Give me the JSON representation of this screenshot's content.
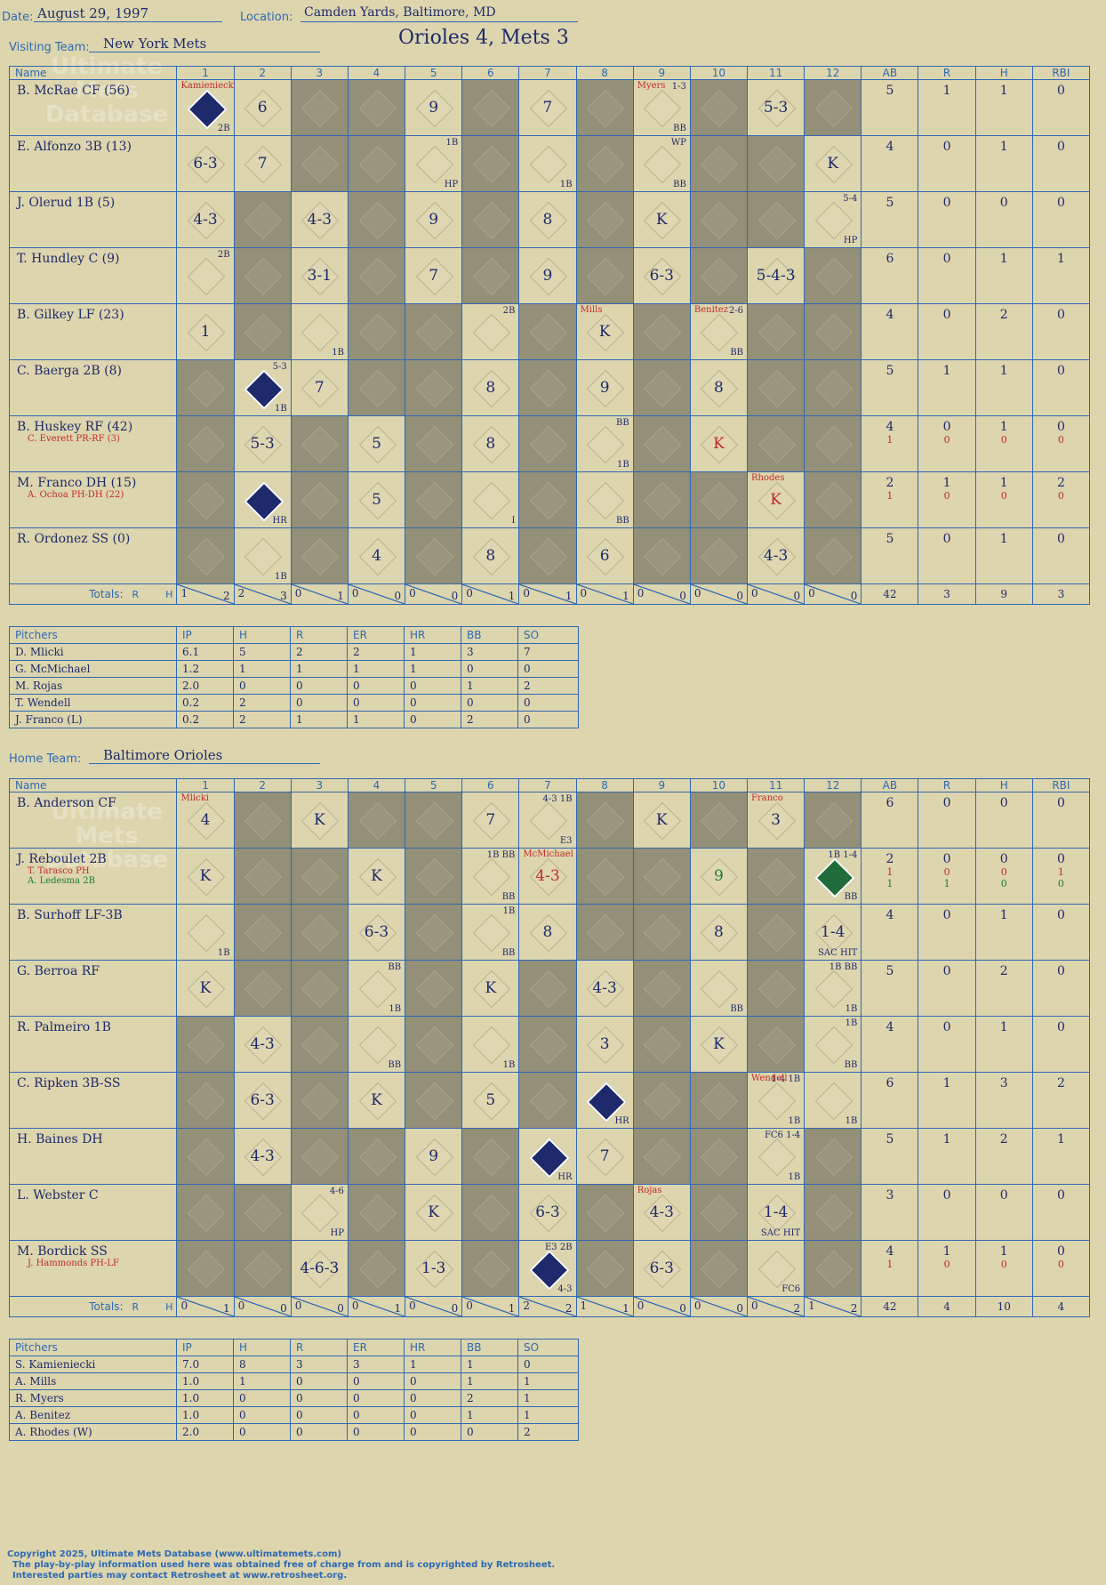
{
  "header": {
    "date_label": "Date:",
    "date": "August 29, 1997",
    "location_label": "Location:",
    "location": "Camden Yards, Baltimore, MD",
    "visiting_label": "Visiting Team:",
    "visiting": "New York Mets",
    "home_label": "Home Team:",
    "home": "Baltimore Orioles",
    "title": "Orioles 4, Mets 3"
  },
  "watermark": [
    "Ultimate",
    "Mets",
    "Database"
  ],
  "columns": {
    "name": "Name",
    "innings": [
      "1",
      "2",
      "3",
      "4",
      "5",
      "6",
      "7",
      "8",
      "9",
      "10",
      "11",
      "12"
    ],
    "stats": [
      "AB",
      "R",
      "H",
      "RBI"
    ]
  },
  "totals_label": "Totals:",
  "rh_label": {
    "r": "R",
    "h": "H"
  },
  "visitors": {
    "rows": [
      {
        "name": "B. McRae CF (56)",
        "subs": [],
        "stats": [
          "5",
          "1",
          "1",
          "0"
        ]
      },
      {
        "name": "E. Alfonzo 3B (13)",
        "subs": [],
        "stats": [
          "4",
          "0",
          "1",
          "0"
        ]
      },
      {
        "name": "J. Olerud 1B (5)",
        "subs": [],
        "stats": [
          "5",
          "0",
          "0",
          "0"
        ]
      },
      {
        "name": "T. Hundley C (9)",
        "subs": [],
        "stats": [
          "6",
          "0",
          "1",
          "1"
        ]
      },
      {
        "name": "B. Gilkey LF (23)",
        "subs": [],
        "stats": [
          "4",
          "0",
          "2",
          "0"
        ]
      },
      {
        "name": "C. Baerga 2B (8)",
        "subs": [],
        "stats": [
          "5",
          "1",
          "1",
          "0"
        ]
      },
      {
        "name": "B. Huskey RF (42)",
        "subs": [
          "C. Everett PR-RF (3)"
        ],
        "stats": [
          "4",
          "0",
          "1",
          "0"
        ],
        "sub_stats": [
          "1",
          "0",
          "0",
          "0"
        ]
      },
      {
        "name": "M. Franco DH (15)",
        "subs": [
          "A. Ochoa PH-DH (22)"
        ],
        "stats": [
          "2",
          "1",
          "1",
          "2"
        ],
        "sub_stats": [
          "1",
          "0",
          "0",
          "0"
        ]
      },
      {
        "name": "R. Ordonez SS (0)",
        "subs": [],
        "stats": [
          "5",
          "0",
          "1",
          "0"
        ]
      }
    ],
    "totals": [
      [
        "1",
        "2"
      ],
      [
        "2",
        "3"
      ],
      [
        "0",
        "1"
      ],
      [
        "0",
        "0"
      ],
      [
        "0",
        "0"
      ],
      [
        "0",
        "1"
      ],
      [
        "0",
        "1"
      ],
      [
        "0",
        "1"
      ],
      [
        "0",
        "0"
      ],
      [
        "0",
        "0"
      ],
      [
        "0",
        "0"
      ],
      [
        "0",
        "0"
      ]
    ],
    "stat_totals": [
      "42",
      "3",
      "9",
      "3"
    ],
    "pitchers_header": [
      "Pitchers",
      "IP",
      "H",
      "R",
      "ER",
      "HR",
      "BB",
      "SO"
    ],
    "pitchers": [
      [
        "D. Mlicki",
        "6.1",
        "5",
        "2",
        "2",
        "1",
        "3",
        "7"
      ],
      [
        "G. McMichael",
        "1.2",
        "1",
        "1",
        "1",
        "1",
        "0",
        "0"
      ],
      [
        "M. Rojas",
        "2.0",
        "0",
        "0",
        "0",
        "0",
        "1",
        "2"
      ],
      [
        "T. Wendell",
        "0.2",
        "2",
        "0",
        "0",
        "0",
        "0",
        "0"
      ],
      [
        "J. Franco (L)",
        "0.2",
        "2",
        "1",
        "1",
        "0",
        "2",
        "0"
      ]
    ]
  },
  "home_team": {
    "rows": [
      {
        "name": "B. Anderson CF",
        "subs": [],
        "stats": [
          "6",
          "0",
          "0",
          "0"
        ]
      },
      {
        "name": "J. Reboulet 2B",
        "subs": [
          "T. Tarasco PH",
          "A. Ledesma 2B"
        ],
        "stats": [
          "2",
          "0",
          "0",
          "0"
        ],
        "sub_stats": [
          "1",
          "0",
          "0",
          "1"
        ],
        "sub_stats2": [
          "1",
          "1",
          "0",
          "0"
        ]
      },
      {
        "name": "B. Surhoff LF-3B",
        "subs": [],
        "stats": [
          "4",
          "0",
          "1",
          "0"
        ]
      },
      {
        "name": "G. Berroa RF",
        "subs": [],
        "stats": [
          "5",
          "0",
          "2",
          "0"
        ]
      },
      {
        "name": "R. Palmeiro 1B",
        "subs": [],
        "stats": [
          "4",
          "0",
          "1",
          "0"
        ]
      },
      {
        "name": "C. Ripken 3B-SS",
        "subs": [],
        "stats": [
          "6",
          "1",
          "3",
          "2"
        ]
      },
      {
        "name": "H. Baines DH",
        "subs": [],
        "stats": [
          "5",
          "1",
          "2",
          "1"
        ]
      },
      {
        "name": "L. Webster C",
        "subs": [],
        "stats": [
          "3",
          "0",
          "0",
          "0"
        ]
      },
      {
        "name": "M. Bordick SS",
        "subs": [
          "J. Hammonds PH-LF"
        ],
        "stats": [
          "4",
          "1",
          "1",
          "0"
        ],
        "sub_stats": [
          "1",
          "0",
          "0",
          "0"
        ]
      }
    ],
    "totals": [
      [
        "0",
        "1"
      ],
      [
        "0",
        "0"
      ],
      [
        "0",
        "0"
      ],
      [
        "0",
        "1"
      ],
      [
        "0",
        "0"
      ],
      [
        "0",
        "1"
      ],
      [
        "2",
        "2"
      ],
      [
        "1",
        "1"
      ],
      [
        "0",
        "0"
      ],
      [
        "0",
        "0"
      ],
      [
        "0",
        "2"
      ],
      [
        "1",
        "2"
      ]
    ],
    "stat_totals": [
      "42",
      "4",
      "10",
      "4"
    ],
    "pitchers_header": [
      "Pitchers",
      "IP",
      "H",
      "R",
      "ER",
      "HR",
      "BB",
      "SO"
    ],
    "pitchers": [
      [
        "S. Kamieniecki",
        "7.0",
        "8",
        "3",
        "3",
        "1",
        "1",
        "0"
      ],
      [
        "A. Mills",
        "1.0",
        "1",
        "0",
        "0",
        "0",
        "1",
        "1"
      ],
      [
        "R. Myers",
        "1.0",
        "0",
        "0",
        "0",
        "0",
        "2",
        "1"
      ],
      [
        "A. Benitez",
        "1.0",
        "0",
        "0",
        "0",
        "0",
        "1",
        "1"
      ],
      [
        "A. Rhodes (W)",
        "2.0",
        "0",
        "0",
        "0",
        "0",
        "0",
        "2"
      ]
    ]
  },
  "plays": {
    "v": [
      [
        [
          "run",
          "",
          "",
          "2B"
        ],
        [
          "",
          "6",
          "",
          ""
        ],
        null,
        null,
        [
          "",
          "9",
          "",
          ""
        ],
        null,
        [
          "",
          "7",
          "",
          ""
        ],
        null,
        [
          "",
          "",
          "1-3",
          "BB"
        ],
        null,
        [
          "",
          "5-3",
          "",
          ""
        ],
        null
      ],
      [
        [
          "",
          "6-3",
          "",
          ""
        ],
        [
          "",
          "7",
          "",
          ""
        ],
        null,
        null,
        [
          "",
          "",
          "1B",
          "HP"
        ],
        null,
        [
          "",
          "",
          "",
          "1B"
        ],
        null,
        [
          "",
          "",
          "WP",
          "BB"
        ],
        null,
        null,
        [
          "",
          "K",
          "",
          ""
        ]
      ],
      [
        [
          "",
          "4-3",
          "",
          ""
        ],
        null,
        [
          "",
          "4-3",
          "",
          ""
        ],
        null,
        [
          "",
          "9",
          "",
          ""
        ],
        null,
        [
          "",
          "8",
          "",
          ""
        ],
        null,
        [
          "",
          "K",
          "",
          ""
        ],
        null,
        null,
        [
          "",
          "",
          "5-4",
          "HP"
        ]
      ],
      [
        [
          "",
          "",
          "2B",
          ""
        ],
        null,
        [
          "",
          "3-1",
          "",
          ""
        ],
        null,
        [
          "",
          "7",
          "",
          ""
        ],
        null,
        [
          "",
          "9",
          "",
          ""
        ],
        null,
        [
          "",
          "6-3",
          "",
          ""
        ],
        null,
        [
          "",
          "5-4-3",
          "",
          ""
        ],
        null
      ],
      [
        [
          "",
          "1",
          "",
          ""
        ],
        null,
        [
          "",
          "",
          "",
          "1B"
        ],
        null,
        null,
        [
          "",
          "",
          "2B",
          ""
        ],
        null,
        [
          "",
          "K",
          "",
          ""
        ],
        null,
        [
          "",
          "",
          "2-6",
          "BB"
        ],
        null,
        null
      ],
      [
        null,
        [
          "run",
          "",
          "5-3",
          "1B"
        ],
        [
          "",
          "7",
          "",
          ""
        ],
        null,
        null,
        [
          "",
          "8",
          "",
          ""
        ],
        null,
        [
          "",
          "9",
          "",
          ""
        ],
        null,
        [
          "",
          "8",
          "",
          ""
        ],
        null,
        null
      ],
      [
        null,
        [
          "",
          "5-3",
          "",
          ""
        ],
        null,
        [
          "",
          "5",
          "",
          ""
        ],
        null,
        [
          "",
          "8",
          "",
          ""
        ],
        null,
        [
          "",
          "",
          "BB",
          "1B"
        ],
        null,
        [
          "red",
          "K",
          "",
          ""
        ],
        null,
        null
      ],
      [
        null,
        [
          "run",
          "",
          "",
          "HR"
        ],
        null,
        [
          "",
          "5",
          "",
          ""
        ],
        null,
        [
          "",
          "",
          "",
          "I"
        ],
        null,
        [
          "",
          "",
          "",
          "BB"
        ],
        null,
        null,
        [
          "red",
          "K",
          "",
          ""
        ],
        null
      ],
      [
        null,
        [
          "",
          "",
          "",
          "1B"
        ],
        null,
        [
          "",
          "4",
          "",
          ""
        ],
        null,
        [
          "",
          "8",
          "",
          ""
        ],
        null,
        [
          "",
          "6",
          "",
          ""
        ],
        null,
        null,
        [
          "",
          "4-3",
          "",
          ""
        ],
        null
      ]
    ],
    "h": [
      [
        [
          "",
          "4",
          "",
          ""
        ],
        null,
        [
          "",
          "K",
          "",
          ""
        ],
        null,
        null,
        [
          "",
          "7",
          "",
          ""
        ],
        [
          "",
          "",
          "4-3 1B",
          "E3"
        ],
        null,
        [
          "",
          "K",
          "",
          ""
        ],
        null,
        [
          "",
          "3",
          "",
          ""
        ],
        null
      ],
      [
        [
          "",
          "K",
          "",
          ""
        ],
        null,
        null,
        [
          "",
          "K",
          "",
          ""
        ],
        null,
        [
          "",
          "",
          "1B BB",
          "BB"
        ],
        [
          "red",
          "4-3",
          "",
          ""
        ],
        null,
        null,
        [
          "grn",
          "9",
          "",
          ""
        ],
        null,
        [
          "runG",
          "",
          "1B 1-4",
          "BB"
        ]
      ],
      [
        [
          "",
          "",
          "",
          "1B"
        ],
        null,
        null,
        [
          "",
          "6-3",
          "",
          ""
        ],
        null,
        [
          "",
          "",
          "1B",
          "BB"
        ],
        [
          "",
          "8",
          "",
          ""
        ],
        null,
        null,
        [
          "",
          "8",
          "",
          ""
        ],
        null,
        [
          "",
          "1-4",
          "",
          "SAC HIT"
        ]
      ],
      [
        [
          "",
          "K",
          "",
          ""
        ],
        null,
        null,
        [
          "",
          "",
          "BB",
          "1B"
        ],
        null,
        [
          "",
          "K",
          "",
          ""
        ],
        null,
        [
          "",
          "4-3",
          "",
          ""
        ],
        null,
        [
          "",
          "",
          "",
          "BB"
        ],
        null,
        [
          "",
          "",
          "1B BB",
          "1B"
        ]
      ],
      [
        null,
        [
          "",
          "4-3",
          "",
          ""
        ],
        null,
        [
          "",
          "",
          "",
          "BB"
        ],
        null,
        [
          "",
          "",
          "",
          "1B"
        ],
        null,
        [
          "",
          "3",
          "",
          ""
        ],
        null,
        [
          "",
          "K",
          "",
          ""
        ],
        null,
        [
          "",
          "",
          "1B",
          "BB"
        ]
      ],
      [
        null,
        [
          "",
          "6-3",
          "",
          ""
        ],
        null,
        [
          "",
          "K",
          "",
          ""
        ],
        null,
        [
          "",
          "5",
          "",
          ""
        ],
        null,
        [
          "run",
          "",
          "",
          "HR"
        ],
        null,
        null,
        [
          "",
          "",
          "1-4 1B",
          "1B"
        ],
        [
          "",
          "",
          "",
          "1B"
        ]
      ],
      [
        null,
        [
          "",
          "4-3",
          "",
          ""
        ],
        null,
        null,
        [
          "",
          "9",
          "",
          ""
        ],
        null,
        [
          "run",
          "",
          "",
          "HR"
        ],
        [
          "",
          "7",
          "",
          ""
        ],
        null,
        null,
        [
          "",
          "",
          "FC6 1-4",
          "1B"
        ],
        null
      ],
      [
        null,
        null,
        [
          "",
          "",
          "4-6",
          "HP"
        ],
        null,
        [
          "",
          "K",
          "",
          ""
        ],
        null,
        [
          "",
          "6-3",
          "",
          ""
        ],
        null,
        [
          "",
          "4-3",
          "",
          ""
        ],
        null,
        [
          "",
          "1-4",
          "",
          "SAC HIT"
        ],
        null
      ],
      [
        null,
        null,
        [
          "",
          "4-6-3",
          "",
          ""
        ],
        null,
        [
          "",
          "1-3",
          "",
          ""
        ],
        null,
        [
          "run",
          "",
          "E3 2B",
          "4-3"
        ],
        null,
        [
          "",
          "6-3",
          "",
          ""
        ],
        null,
        [
          "",
          "",
          "",
          "FC6"
        ],
        null
      ]
    ]
  },
  "pitcher_changes": {
    "v": [
      [
        "Kamieniecki",
        0,
        0
      ],
      [
        "Myers",
        0,
        8
      ],
      [
        "Mills",
        4,
        7
      ],
      [
        "Benitez",
        4,
        9
      ],
      [
        "Rhodes",
        7,
        10
      ]
    ],
    "h": [
      [
        "Mlicki",
        0,
        0
      ],
      [
        "McMichael",
        1,
        6
      ],
      [
        "Franco",
        0,
        10
      ],
      [
        "Wendell",
        5,
        10
      ],
      [
        "Rojas",
        7,
        8
      ]
    ]
  },
  "copyright": [
    "Copyright 2025, Ultimate Mets Database (www.ultimatemets.com)",
    "The play-by-play information used here was obtained free of charge from and is copyrighted by Retrosheet.",
    "Interested parties may contact Retrosheet at www.retrosheet.org."
  ]
}
